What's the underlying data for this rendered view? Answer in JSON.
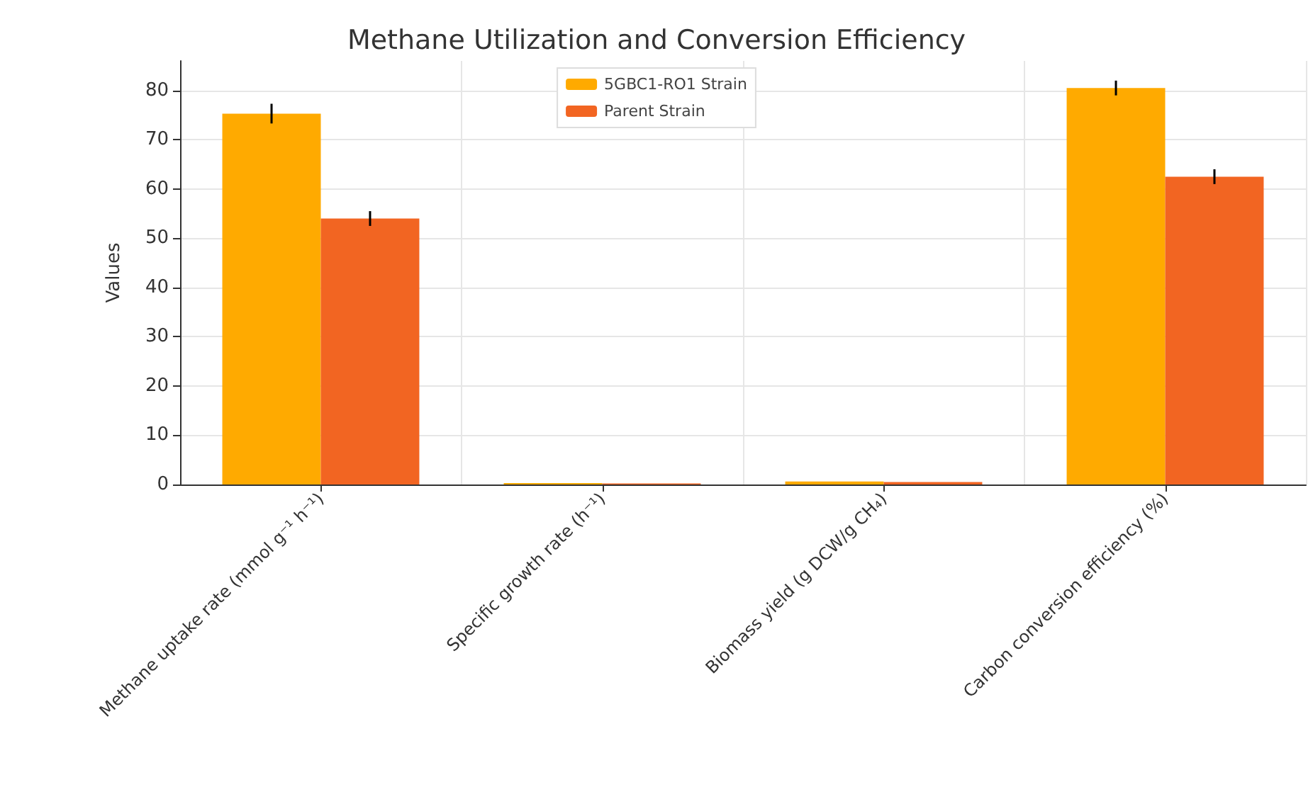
{
  "chart_data": {
    "type": "bar",
    "title": "Methane Utilization and Conversion Efficiency",
    "ylabel": "Values",
    "categories": [
      "Methane uptake rate (mmol g⁻¹ h⁻¹)",
      "Specific growth rate (h⁻¹)",
      "Biomass yield (g DCW/g CH₄)",
      "Carbon conversion efficiency (%)"
    ],
    "series": [
      {
        "name": "5GBC1-RO1 Strain",
        "color": "#ffaa00",
        "values": [
          75.3,
          0.3,
          0.6,
          80.5
        ],
        "errors": [
          2,
          null,
          null,
          1.5
        ]
      },
      {
        "name": "Parent Strain",
        "color": "#f26522",
        "values": [
          54,
          0.2,
          0.5,
          62.5
        ],
        "errors": [
          1.5,
          null,
          null,
          1.5
        ]
      }
    ],
    "ylim": [
      0,
      86
    ],
    "yticks": [
      0,
      10,
      20,
      30,
      40,
      50,
      60,
      70,
      80
    ],
    "grid": true,
    "legend": "top"
  }
}
